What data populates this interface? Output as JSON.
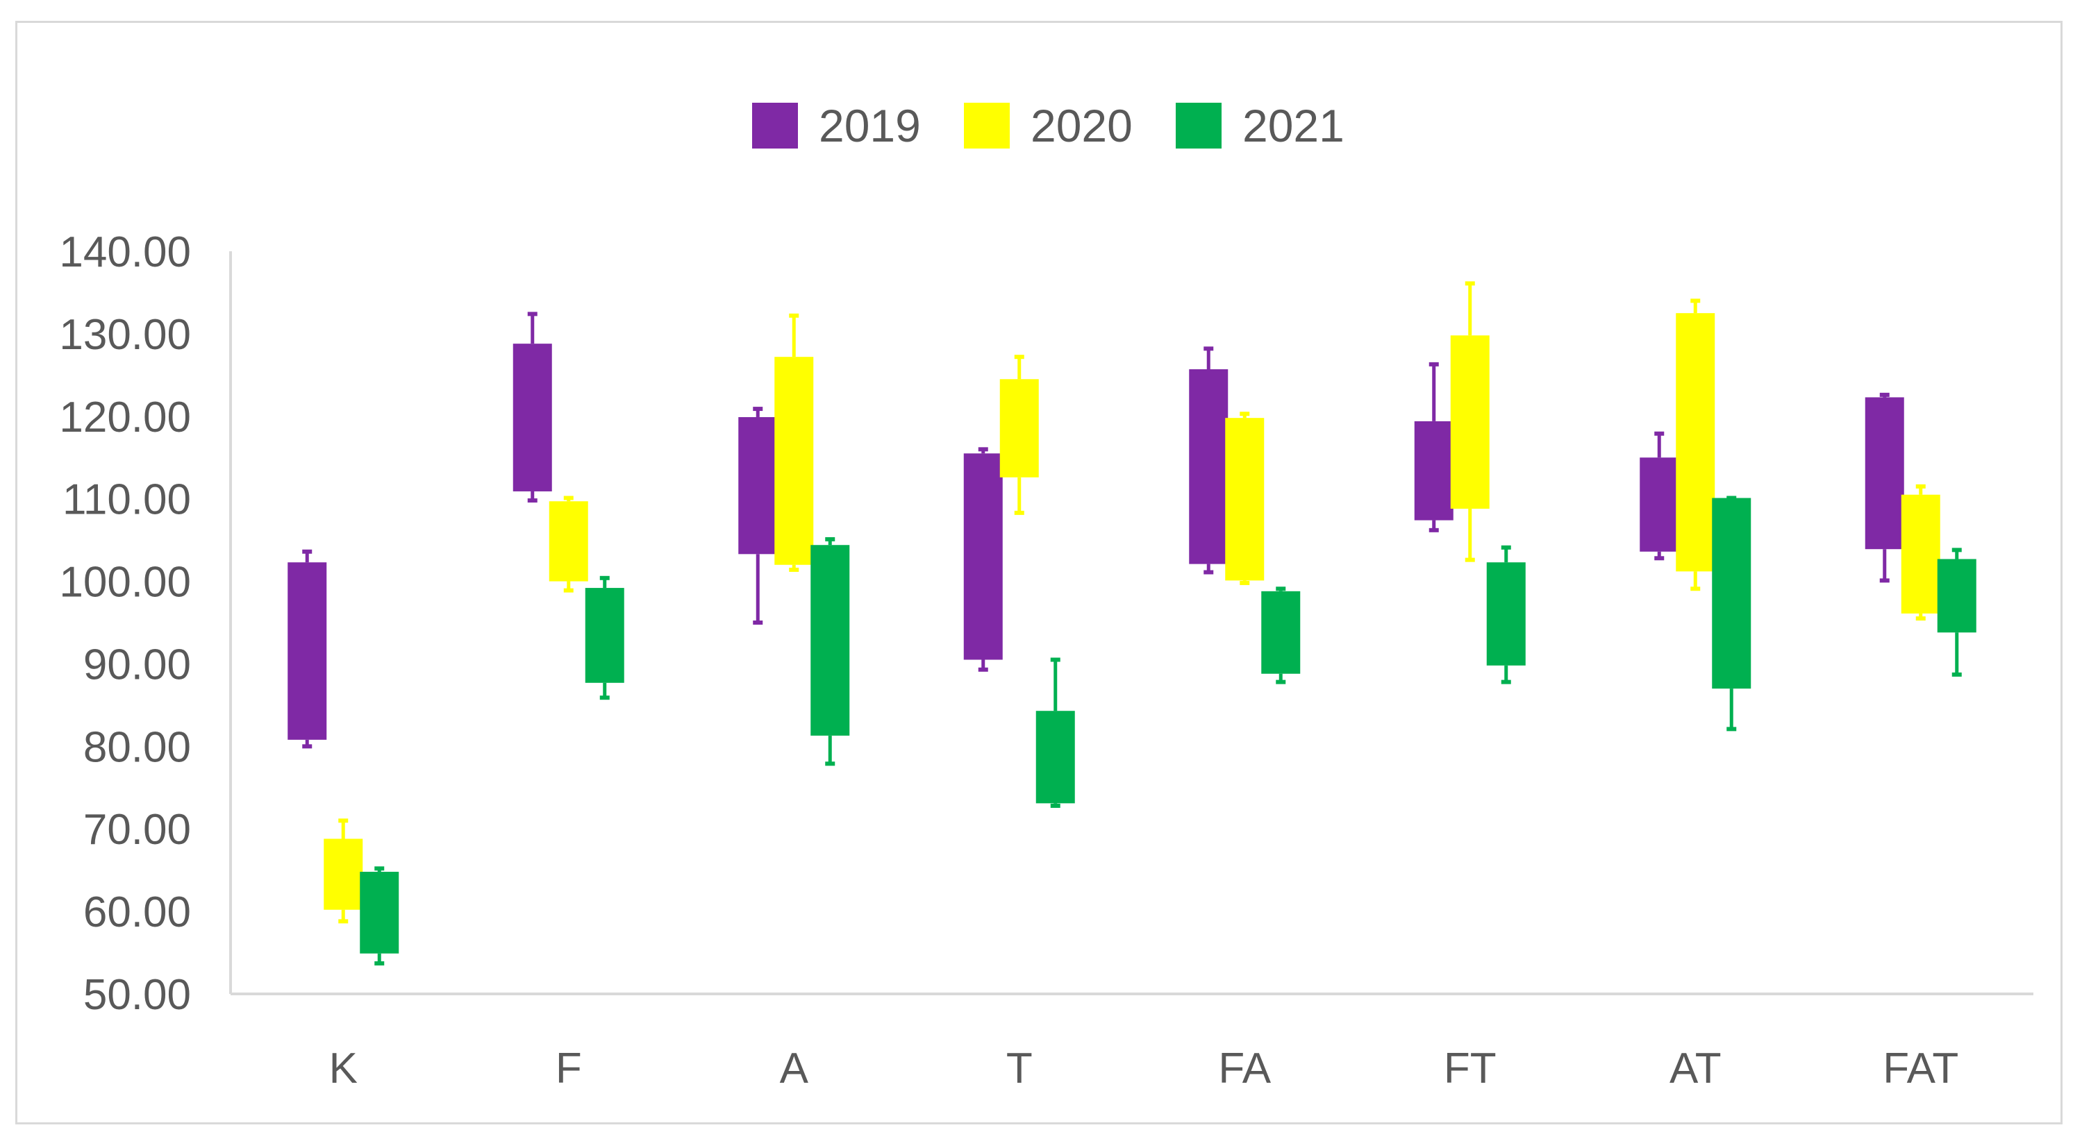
{
  "chart_data": {
    "type": "candlestick",
    "title": "",
    "xlabel": "",
    "ylabel": "",
    "categories": [
      "K",
      "F",
      "A",
      "T",
      "FA",
      "FT",
      "AT",
      "FAT"
    ],
    "ylim": [
      50,
      140
    ],
    "y_ticks": [
      "50.00",
      "60.00",
      "70.00",
      "80.00",
      "90.00",
      "100.00",
      "110.00",
      "120.00",
      "130.00",
      "140.00"
    ],
    "legend_position": "top",
    "grid": false,
    "series": [
      {
        "name": "2019",
        "color": "#7f29a5",
        "boxes": [
          {
            "low": 80,
            "bottom": 80.8,
            "top": 102.3,
            "high": 103.6
          },
          {
            "low": 109.8,
            "bottom": 110.9,
            "top": 128.8,
            "high": 132.4
          },
          {
            "low": 95,
            "bottom": 103.3,
            "top": 119.9,
            "high": 120.9
          },
          {
            "low": 89.3,
            "bottom": 90.5,
            "top": 115.5,
            "high": 116
          },
          {
            "low": 101.1,
            "bottom": 102.1,
            "top": 125.7,
            "high": 128.2
          },
          {
            "low": 106.2,
            "bottom": 107.4,
            "top": 119.4,
            "high": 126.3
          },
          {
            "low": 102.8,
            "bottom": 103.6,
            "top": 115,
            "high": 117.9
          },
          {
            "low": 100.1,
            "bottom": 103.9,
            "top": 122.3,
            "high": 122.6
          }
        ]
      },
      {
        "name": "2020",
        "color": "#ffff00",
        "boxes": [
          {
            "low": 58.8,
            "bottom": 60.2,
            "top": 68.8,
            "high": 71
          },
          {
            "low": 98.9,
            "bottom": 100,
            "top": 109.7,
            "high": 110.1
          },
          {
            "low": 101.4,
            "bottom": 102,
            "top": 127.2,
            "high": 132.2
          },
          {
            "low": 108.3,
            "bottom": 112.6,
            "top": 124.5,
            "high": 127.2
          },
          {
            "low": 99.8,
            "bottom": 100.1,
            "top": 119.8,
            "high": 120.3
          },
          {
            "low": 102.6,
            "bottom": 108.8,
            "top": 129.8,
            "high": 136.1
          },
          {
            "low": 99.1,
            "bottom": 101.2,
            "top": 132.5,
            "high": 134
          },
          {
            "low": 95.5,
            "bottom": 96.1,
            "top": 110.5,
            "high": 111.5
          }
        ]
      },
      {
        "name": "2021",
        "color": "#00b050",
        "boxes": [
          {
            "low": 53.7,
            "bottom": 54.9,
            "top": 64.8,
            "high": 65.2
          },
          {
            "low": 85.9,
            "bottom": 87.7,
            "top": 99.2,
            "high": 100.4
          },
          {
            "low": 77.9,
            "bottom": 81.3,
            "top": 104.4,
            "high": 105.1
          },
          {
            "low": 72.8,
            "bottom": 73.1,
            "top": 84.3,
            "high": 90.5
          },
          {
            "low": 87.8,
            "bottom": 88.8,
            "top": 98.8,
            "high": 99.1
          },
          {
            "low": 87.8,
            "bottom": 89.8,
            "top": 102.3,
            "high": 104.1
          },
          {
            "low": 82.1,
            "bottom": 87,
            "top": 110.1,
            "high": 110.1
          },
          {
            "low": 88.7,
            "bottom": 93.8,
            "top": 102.7,
            "high": 103.8
          }
        ]
      }
    ]
  }
}
